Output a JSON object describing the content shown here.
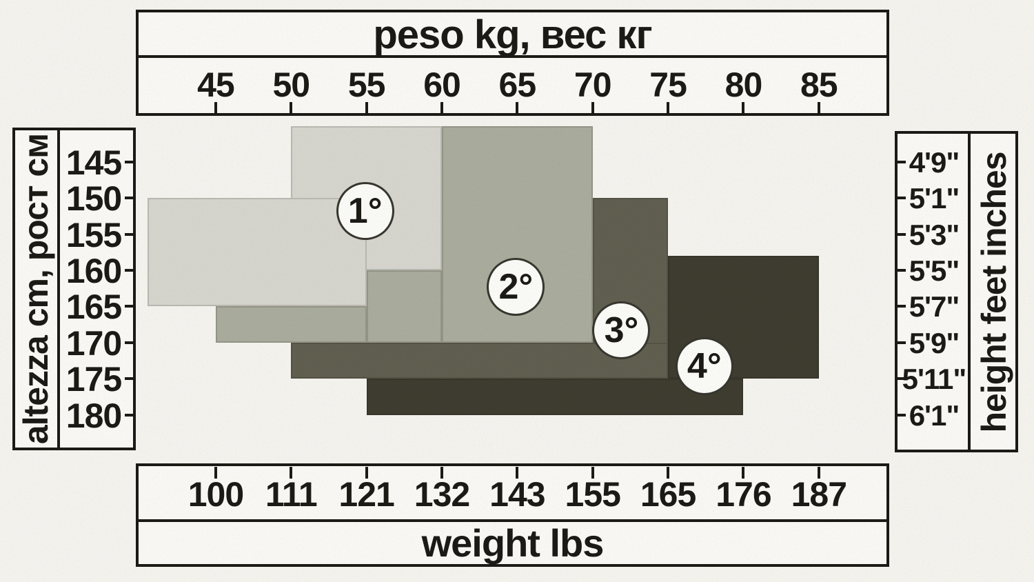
{
  "chart_data": {
    "type": "area",
    "note": "Scanned garment size chart: four stepped rectangular size regions (1°-4°) plotted on weight (kg top / lbs bottom) versus height (cm left / feet-inches right). Region rects given as [kg_min, cm_min, kg_max, cm_max].",
    "grid": false,
    "axes": {
      "top": {
        "title": "peso kg, вес кг",
        "ticks": [
          45,
          50,
          55,
          60,
          65,
          70,
          75,
          80,
          85
        ],
        "range_kg": [
          39.7,
          89.9
        ]
      },
      "bottom": {
        "title": "weight lbs",
        "ticks": [
          100,
          111,
          121,
          132,
          143,
          155,
          165,
          176,
          187
        ]
      },
      "left": {
        "title": "altezza cm, рост см",
        "ticks": [
          145,
          150,
          155,
          160,
          165,
          170,
          175,
          180
        ],
        "range_cm": [
          138.8,
          185.1
        ]
      },
      "right": {
        "title": "height feet inches",
        "ticks": [
          "4'9\"",
          "5'1\"",
          "5'3\"",
          "5'5\"",
          "5'7\"",
          "5'9\"",
          "5'11\"",
          "6'1\""
        ]
      }
    },
    "regions": [
      {
        "label": "1°",
        "color": "#d8d7cf",
        "rects_kg_cm": [
          [
            50,
            140,
            60,
            160
          ],
          [
            40.5,
            150,
            55,
            165
          ]
        ],
        "label_center_kg_cm": [
          55,
          152
        ]
      },
      {
        "label": "2°",
        "color": "#abad9e",
        "rects_kg_cm": [
          [
            60,
            140,
            70,
            170
          ],
          [
            55,
            160,
            60,
            170
          ],
          [
            45,
            165,
            55,
            170
          ]
        ],
        "label_center_kg_cm": [
          65,
          162.5
        ]
      },
      {
        "label": "3°",
        "color": "#615f50",
        "rects_kg_cm": [
          [
            70,
            150,
            75,
            175
          ],
          [
            50,
            170,
            75,
            175
          ]
        ],
        "label_center_kg_cm": [
          72,
          168.5
        ]
      },
      {
        "label": "4°",
        "color": "#3f3d30",
        "rects_kg_cm": [
          [
            75,
            158,
            85,
            175
          ],
          [
            55,
            175,
            80,
            180
          ]
        ],
        "label_center_kg_cm": [
          77.5,
          173.5
        ]
      }
    ],
    "region_label_style": {
      "circle_fill": "#fcfcf8",
      "circle_border": "#15150f"
    },
    "ink_color": "#1b1a14",
    "page_background": "#f6f5f0"
  }
}
